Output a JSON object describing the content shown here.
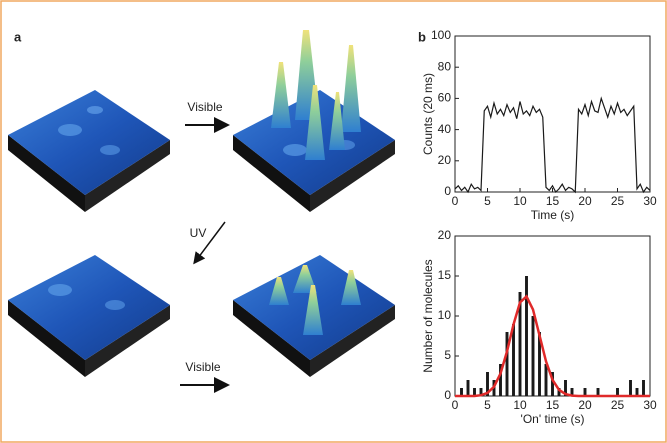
{
  "panel_a": {
    "label": "a",
    "arrow_top": "Visible",
    "arrow_diag": "UV",
    "arrow_bottom": "Visible"
  },
  "chart_data": [
    {
      "type": "line",
      "panel_label": "b",
      "x_label": "Time (s)",
      "y_label": "Counts (20 ms)",
      "color": "#1a1a1a",
      "x": [
        0,
        0.5,
        1,
        1.5,
        2,
        2.5,
        3,
        3.5,
        4,
        4.5,
        5,
        5.5,
        6,
        6.5,
        7,
        7.5,
        8,
        8.5,
        9,
        9.5,
        10,
        10.5,
        11,
        11.5,
        12,
        12.5,
        13,
        13.5,
        14,
        14.5,
        15,
        15.5,
        16,
        16.5,
        17,
        17.5,
        18,
        18.5,
        19,
        19.5,
        20,
        20.5,
        21,
        21.5,
        22,
        22.5,
        23,
        23.5,
        24,
        24.5,
        25,
        25.5,
        26,
        26.5,
        27,
        27.5,
        28,
        28.5,
        29,
        29.5,
        30
      ],
      "values": [
        2,
        4,
        1,
        3,
        0,
        5,
        2,
        3,
        1,
        52,
        55,
        48,
        57,
        50,
        53,
        49,
        56,
        51,
        54,
        47,
        58,
        50,
        52,
        49,
        55,
        51,
        53,
        48,
        3,
        1,
        4,
        0,
        2,
        5,
        1,
        3,
        2,
        0,
        53,
        50,
        56,
        49,
        58,
        52,
        51,
        60,
        54,
        48,
        55,
        50,
        57,
        51,
        53,
        49,
        52,
        55,
        2,
        5,
        0,
        3,
        1
      ],
      "xlim": [
        0,
        30
      ],
      "ylim": [
        0,
        100
      ],
      "xticks": [
        0,
        5,
        10,
        15,
        20,
        25,
        30
      ],
      "yticks": [
        0,
        20,
        40,
        60,
        80,
        100
      ]
    },
    {
      "type": "bar",
      "x_label": "'On' time (s)",
      "y_label": "Number of molecules",
      "color": "#1a1a1a",
      "x": [
        1,
        2,
        3,
        4,
        5,
        6,
        7,
        8,
        9,
        10,
        11,
        12,
        13,
        14,
        15,
        16,
        17,
        18,
        20,
        22,
        25,
        27,
        28,
        29
      ],
      "values": [
        1,
        2,
        1,
        1,
        3,
        2,
        4,
        8,
        9,
        13,
        15,
        10,
        8,
        4,
        3,
        1,
        2,
        1,
        1,
        1,
        1,
        2,
        1,
        2
      ],
      "fit": {
        "color": "#e02a2a",
        "x": [
          0,
          1,
          2,
          3,
          4,
          5,
          6,
          7,
          8,
          9,
          10,
          11,
          12,
          13,
          14,
          15,
          16,
          17,
          18,
          19,
          20,
          22,
          24,
          26,
          28,
          30
        ],
        "values": [
          0,
          0,
          0,
          0,
          0.1,
          0.39,
          1.16,
          2.81,
          5.56,
          8.94,
          11.7,
          12.45,
          10.8,
          7.58,
          4.34,
          2.02,
          0.77,
          0.24,
          0.05,
          0,
          0,
          0,
          0,
          0,
          0,
          0
        ]
      },
      "xlim": [
        0,
        30
      ],
      "ylim": [
        0,
        20
      ],
      "xticks": [
        0,
        5,
        10,
        15,
        20,
        25,
        30
      ],
      "yticks": [
        0,
        5,
        10,
        15,
        20
      ]
    }
  ]
}
